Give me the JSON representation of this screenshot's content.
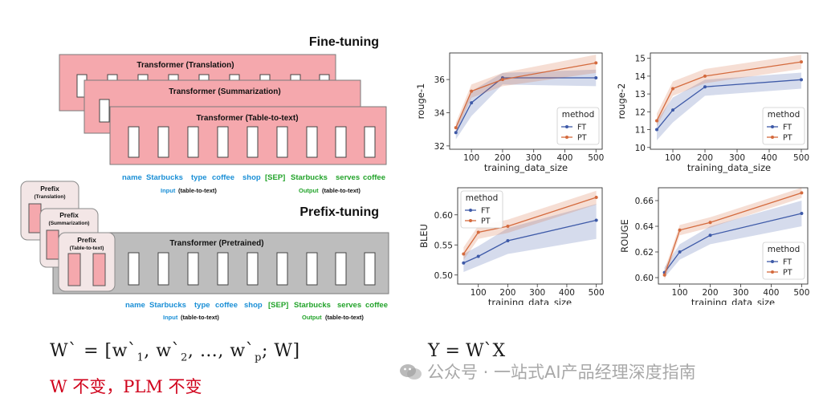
{
  "diagram": {
    "fine_tuning_title": "Fine-tuning",
    "prefix_tuning_title": "Prefix-tuning",
    "transformers": [
      "Transformer (Translation)",
      "Transformer (Summarization)",
      "Transformer (Table-to-text)"
    ],
    "pretrained_transformer": "Transformer  (Pretrained)",
    "prefixes": [
      {
        "title": "Prefix",
        "sub": "(Translation)"
      },
      {
        "title": "Prefix",
        "sub": "(Summarization)"
      },
      {
        "title": "Prefix",
        "sub": "(Table-to-text)"
      }
    ],
    "input_tokens": [
      "name",
      "Starbucks",
      "type",
      "coffee",
      "shop"
    ],
    "sep_token": "[SEP]",
    "output_tokens": [
      "Starbucks",
      "serves",
      "coffee"
    ],
    "input_label": "Input",
    "input_sub": "(table-to-text)",
    "output_label": "Output",
    "output_sub": "(table-to-text)",
    "colors": {
      "input_blue": "#1a8fd6",
      "output_green": "#22a32a",
      "pink_fill": "#f5a8ad",
      "gray_fill": "#bdbdbd"
    }
  },
  "chart_data": [
    {
      "type": "line",
      "ylabel": "rouge-1",
      "xlabel": "training_data_size",
      "x": [
        50,
        100,
        200,
        500
      ],
      "xticks": [
        100,
        200,
        300,
        400,
        500
      ],
      "xlim": [
        30,
        520
      ],
      "yticks": [
        32,
        34,
        36
      ],
      "ylim": [
        31.8,
        37.6
      ],
      "legend_title": "method",
      "legend_position": "lower-right",
      "series": [
        {
          "name": "FT",
          "color": "#3e5aa8",
          "values": [
            32.8,
            34.6,
            36.1,
            36.1
          ],
          "lower": [
            32.4,
            33.8,
            35.7,
            35.6
          ],
          "upper": [
            33.2,
            35.3,
            36.4,
            36.6
          ]
        },
        {
          "name": "PT",
          "color": "#d46a3d",
          "values": [
            33.1,
            35.3,
            36.0,
            37.0
          ],
          "lower": [
            32.8,
            34.9,
            35.6,
            36.4
          ],
          "upper": [
            33.4,
            35.7,
            36.4,
            37.5
          ]
        }
      ]
    },
    {
      "type": "line",
      "ylabel": "rouge-2",
      "xlabel": "training_data_size",
      "x": [
        50,
        100,
        200,
        500
      ],
      "xticks": [
        100,
        200,
        300,
        400,
        500
      ],
      "xlim": [
        30,
        520
      ],
      "yticks": [
        10,
        11,
        12,
        13,
        14,
        15
      ],
      "ylim": [
        9.9,
        15.3
      ],
      "legend_title": "method",
      "legend_position": "lower-right",
      "series": [
        {
          "name": "FT",
          "color": "#3e5aa8",
          "values": [
            11.0,
            12.1,
            13.4,
            13.8
          ],
          "lower": [
            10.4,
            11.4,
            12.9,
            13.3
          ],
          "upper": [
            11.5,
            12.8,
            13.8,
            14.2
          ]
        },
        {
          "name": "PT",
          "color": "#d46a3d",
          "values": [
            11.5,
            13.3,
            14.0,
            14.8
          ],
          "lower": [
            11.2,
            12.9,
            13.6,
            14.4
          ],
          "upper": [
            11.9,
            13.7,
            14.4,
            15.2
          ]
        }
      ]
    },
    {
      "type": "line",
      "ylabel": "BLEU",
      "xlabel": "training_data_size",
      "x": [
        50,
        100,
        200,
        500
      ],
      "xticks": [
        100,
        200,
        300,
        400,
        500
      ],
      "xlim": [
        30,
        520
      ],
      "yticks": [
        0.5,
        0.55,
        0.6
      ],
      "ylim": [
        0.485,
        0.645
      ],
      "legend_title": "method",
      "legend_position": "upper-left",
      "series": [
        {
          "name": "FT",
          "color": "#3e5aa8",
          "values": [
            0.52,
            0.531,
            0.557,
            0.591
          ],
          "lower": [
            0.505,
            0.515,
            0.535,
            0.56
          ],
          "upper": [
            0.535,
            0.548,
            0.578,
            0.618
          ]
        },
        {
          "name": "PT",
          "color": "#d46a3d",
          "values": [
            0.535,
            0.571,
            0.581,
            0.629
          ],
          "lower": [
            0.525,
            0.56,
            0.57,
            0.617
          ],
          "upper": [
            0.546,
            0.582,
            0.592,
            0.64
          ]
        }
      ]
    },
    {
      "type": "line",
      "ylabel": "ROUGE",
      "xlabel": "training_data_size",
      "x": [
        50,
        100,
        200,
        500
      ],
      "xticks": [
        100,
        200,
        300,
        400,
        500
      ],
      "xlim": [
        30,
        520
      ],
      "yticks": [
        0.6,
        0.62,
        0.64,
        0.66
      ],
      "ylim": [
        0.595,
        0.67
      ],
      "legend_title": "method",
      "legend_position": "lower-right",
      "series": [
        {
          "name": "FT",
          "color": "#3e5aa8",
          "values": [
            0.604,
            0.62,
            0.633,
            0.65
          ],
          "lower": [
            0.6,
            0.614,
            0.626,
            0.64
          ],
          "upper": [
            0.608,
            0.626,
            0.64,
            0.66
          ]
        },
        {
          "name": "PT",
          "color": "#d46a3d",
          "values": [
            0.602,
            0.637,
            0.643,
            0.666
          ],
          "lower": [
            0.598,
            0.633,
            0.639,
            0.662
          ],
          "upper": [
            0.606,
            0.641,
            0.647,
            0.67
          ]
        }
      ]
    }
  ],
  "formulas": {
    "left_parts": [
      "W` = [w`",
      "1",
      ", w`",
      "2",
      ", …, w`",
      "p",
      "; W]"
    ],
    "note": "W 不变，PLM 不变",
    "right": "Y = W`X"
  },
  "watermark": {
    "text": "公众号 · 一站式AI产品经理深度指南",
    "icon": "wechat-icon"
  }
}
